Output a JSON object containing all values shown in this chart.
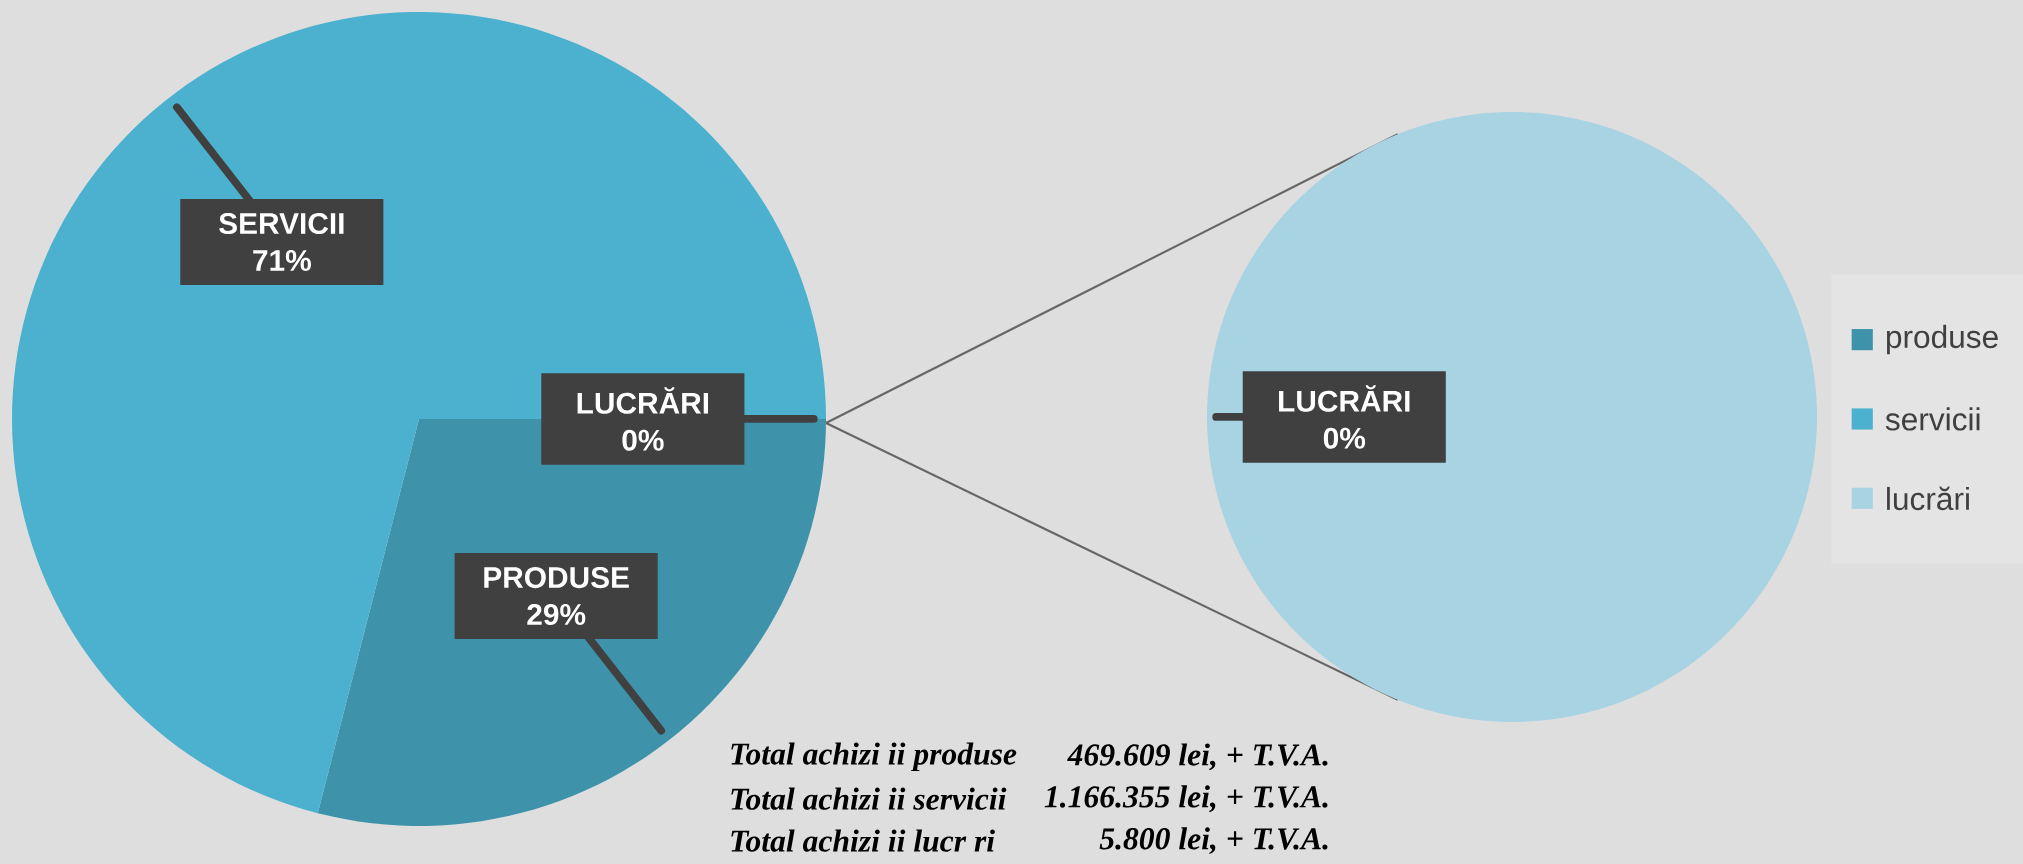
{
  "chart_data": [
    {
      "type": "pie",
      "categories": [
        "produse",
        "servicii",
        "lucrări"
      ],
      "values": [
        29,
        71,
        0
      ],
      "colors": [
        "#3e93ab",
        "#4bb1cf",
        "#a8d3e2"
      ],
      "value_labels": [
        "PRODUSE 29%",
        "SERVICII 71%",
        "LUCRĂRI 0%"
      ],
      "legend": "right",
      "annotations": [
        "Total achizi ii produse",
        "469.609 lei, + T.V.A.",
        "Total achizi ii servicii",
        "1.166.355 lei, + T.V.A.",
        "Total achizi ii lucr  ri",
        "5.800 lei, + T.V.A."
      ]
    },
    {
      "type": "pie",
      "categories": [
        null
      ],
      "values": [
        100
      ],
      "colors": [
        "#a8d3e2"
      ],
      "value_labels": [
        "LUCRĂRI 0%"
      ]
    }
  ]
}
